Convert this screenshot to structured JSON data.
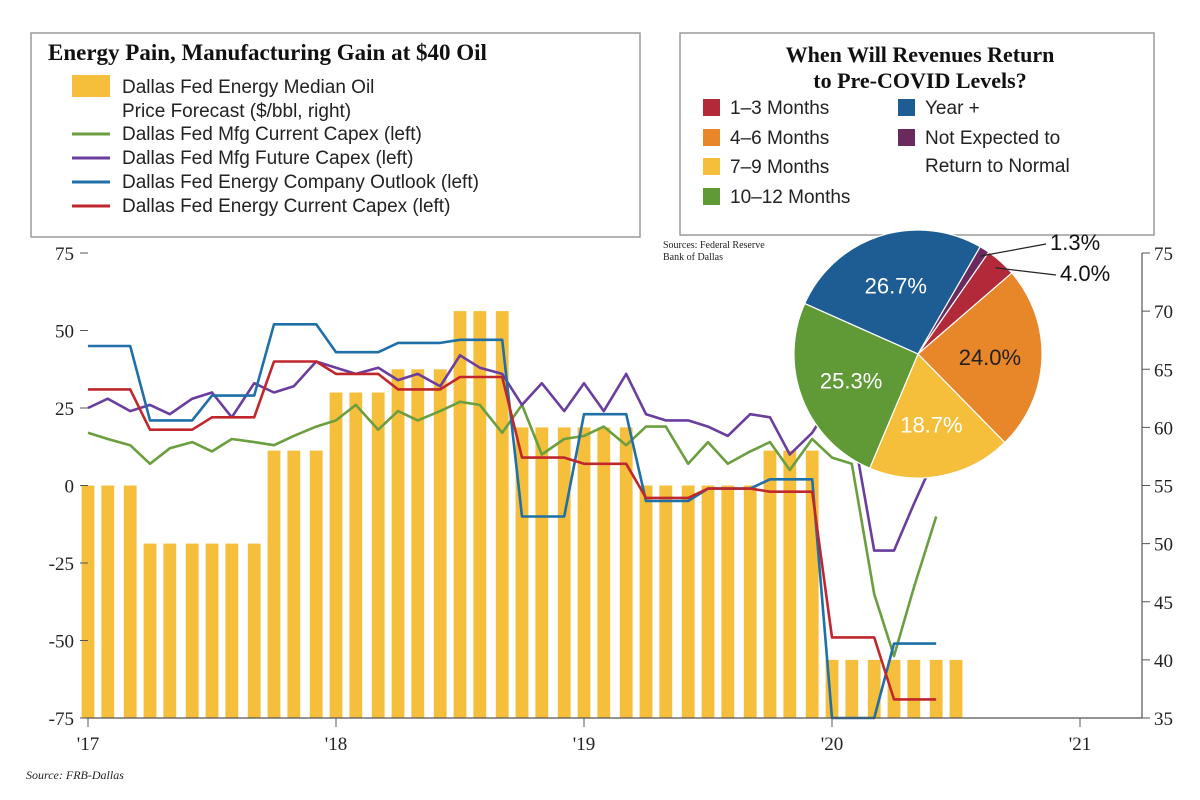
{
  "chart_data": [
    {
      "type": "bar+line",
      "title": "Energy Pain, Manufacturing Gain at $40 Oil",
      "source": "Source:  FRB-Dallas",
      "x_tick_labels": [
        "'17",
        "'18",
        "'19",
        "'20",
        "'21"
      ],
      "x_range": [
        2017.0,
        2021.25
      ],
      "left_axis": {
        "ylim": [
          -75,
          75
        ],
        "ticks": [
          "75",
          "50",
          "25",
          "0",
          "-25",
          "-50",
          "-75"
        ]
      },
      "right_axis": {
        "ylim": [
          35,
          75
        ],
        "ticks": [
          "75",
          "70",
          "65",
          "60",
          "55",
          "50",
          "45",
          "40",
          "35"
        ]
      },
      "bars": {
        "name": "Dallas Fed Energy Median Oil Price Forecast ($/bbl, right)",
        "axis": "right",
        "color": "#f5bf3c",
        "points": [
          [
            2017.0,
            55
          ],
          [
            2017.08,
            55
          ],
          [
            2017.17,
            55
          ],
          [
            2017.25,
            50
          ],
          [
            2017.33,
            50
          ],
          [
            2017.42,
            50
          ],
          [
            2017.5,
            50
          ],
          [
            2017.58,
            50
          ],
          [
            2017.67,
            50
          ],
          [
            2017.75,
            58
          ],
          [
            2017.83,
            58
          ],
          [
            2017.92,
            58
          ],
          [
            2018.0,
            63
          ],
          [
            2018.08,
            63
          ],
          [
            2018.17,
            63
          ],
          [
            2018.25,
            65
          ],
          [
            2018.33,
            65
          ],
          [
            2018.42,
            65
          ],
          [
            2018.5,
            70
          ],
          [
            2018.58,
            70
          ],
          [
            2018.67,
            70
          ],
          [
            2018.75,
            60
          ],
          [
            2018.83,
            60
          ],
          [
            2018.92,
            60
          ],
          [
            2019.0,
            60
          ],
          [
            2019.08,
            60
          ],
          [
            2019.17,
            60
          ],
          [
            2019.25,
            55
          ],
          [
            2019.33,
            55
          ],
          [
            2019.42,
            55
          ],
          [
            2019.5,
            55
          ],
          [
            2019.58,
            55
          ],
          [
            2019.67,
            55
          ],
          [
            2019.75,
            58
          ],
          [
            2019.83,
            58
          ],
          [
            2019.92,
            58
          ],
          [
            2020.0,
            40
          ],
          [
            2020.08,
            40
          ],
          [
            2020.17,
            40
          ],
          [
            2020.25,
            40
          ],
          [
            2020.33,
            40
          ],
          [
            2020.42,
            40
          ],
          [
            2020.5,
            40
          ]
        ]
      },
      "series": [
        {
          "name": "Dallas Fed Mfg Current Capex (left)",
          "axis": "left",
          "color": "#6a9e3f",
          "points": [
            [
              2017.0,
              17
            ],
            [
              2017.08,
              15
            ],
            [
              2017.17,
              13
            ],
            [
              2017.25,
              7
            ],
            [
              2017.33,
              12
            ],
            [
              2017.42,
              14
            ],
            [
              2017.5,
              11
            ],
            [
              2017.58,
              15
            ],
            [
              2017.67,
              14
            ],
            [
              2017.75,
              13
            ],
            [
              2017.83,
              16
            ],
            [
              2017.92,
              19
            ],
            [
              2018.0,
              21
            ],
            [
              2018.08,
              26
            ],
            [
              2018.17,
              18
            ],
            [
              2018.25,
              24
            ],
            [
              2018.33,
              21
            ],
            [
              2018.42,
              24
            ],
            [
              2018.5,
              27
            ],
            [
              2018.58,
              26
            ],
            [
              2018.67,
              17
            ],
            [
              2018.75,
              26
            ],
            [
              2018.83,
              10
            ],
            [
              2018.92,
              15
            ],
            [
              2019.0,
              16
            ],
            [
              2019.08,
              19
            ],
            [
              2019.17,
              13
            ],
            [
              2019.25,
              19
            ],
            [
              2019.33,
              19
            ],
            [
              2019.42,
              7
            ],
            [
              2019.5,
              14
            ],
            [
              2019.58,
              7
            ],
            [
              2019.67,
              11
            ],
            [
              2019.75,
              14
            ],
            [
              2019.83,
              5
            ],
            [
              2019.92,
              15
            ],
            [
              2020.0,
              9
            ],
            [
              2020.08,
              7
            ],
            [
              2020.17,
              -35
            ],
            [
              2020.25,
              -55
            ],
            [
              2020.33,
              -33
            ],
            [
              2020.42,
              -10
            ]
          ]
        },
        {
          "name": "Dallas Fed Mfg Future Capex (left)",
          "axis": "left",
          "color": "#6a3d9e",
          "points": [
            [
              2017.0,
              25
            ],
            [
              2017.08,
              28
            ],
            [
              2017.17,
              24
            ],
            [
              2017.25,
              26
            ],
            [
              2017.33,
              23
            ],
            [
              2017.42,
              28
            ],
            [
              2017.5,
              30
            ],
            [
              2017.58,
              22
            ],
            [
              2017.67,
              33
            ],
            [
              2017.75,
              30
            ],
            [
              2017.83,
              32
            ],
            [
              2017.92,
              40
            ],
            [
              2018.0,
              38
            ],
            [
              2018.08,
              36
            ],
            [
              2018.17,
              38
            ],
            [
              2018.25,
              34
            ],
            [
              2018.33,
              36
            ],
            [
              2018.42,
              32
            ],
            [
              2018.5,
              42
            ],
            [
              2018.58,
              38
            ],
            [
              2018.67,
              36
            ],
            [
              2018.75,
              26
            ],
            [
              2018.83,
              33
            ],
            [
              2018.92,
              24
            ],
            [
              2019.0,
              33
            ],
            [
              2019.08,
              24
            ],
            [
              2019.17,
              36
            ],
            [
              2019.25,
              23
            ],
            [
              2019.33,
              21
            ],
            [
              2019.42,
              21
            ],
            [
              2019.5,
              19
            ],
            [
              2019.58,
              16
            ],
            [
              2019.67,
              23
            ],
            [
              2019.75,
              22
            ],
            [
              2019.83,
              10
            ],
            [
              2019.92,
              17
            ],
            [
              2020.0,
              27
            ],
            [
              2020.08,
              20
            ],
            [
              2020.17,
              -21
            ],
            [
              2020.25,
              -21
            ],
            [
              2020.33,
              -6
            ],
            [
              2020.42,
              10
            ]
          ]
        },
        {
          "name": "Dallas Fed Energy Company Outlook (left)",
          "axis": "left",
          "color": "#1f6fa8",
          "points": [
            [
              2017.0,
              45
            ],
            [
              2017.17,
              45
            ],
            [
              2017.25,
              21
            ],
            [
              2017.42,
              21
            ],
            [
              2017.5,
              29
            ],
            [
              2017.67,
              29
            ],
            [
              2017.75,
              52
            ],
            [
              2017.92,
              52
            ],
            [
              2018.0,
              43
            ],
            [
              2018.17,
              43
            ],
            [
              2018.25,
              46
            ],
            [
              2018.42,
              46
            ],
            [
              2018.5,
              47
            ],
            [
              2018.67,
              47
            ],
            [
              2018.75,
              -10
            ],
            [
              2018.92,
              -10
            ],
            [
              2019.0,
              23
            ],
            [
              2019.17,
              23
            ],
            [
              2019.25,
              -5
            ],
            [
              2019.42,
              -5
            ],
            [
              2019.5,
              -1
            ],
            [
              2019.67,
              -1
            ],
            [
              2019.75,
              2
            ],
            [
              2019.92,
              2
            ],
            [
              2020.0,
              -75
            ],
            [
              2020.17,
              -75
            ],
            [
              2020.25,
              -51
            ],
            [
              2020.42,
              -51
            ]
          ]
        },
        {
          "name": "Dallas Fed Energy Current Capex (left)",
          "axis": "left",
          "color": "#c0272d",
          "points": [
            [
              2017.0,
              31
            ],
            [
              2017.17,
              31
            ],
            [
              2017.25,
              18
            ],
            [
              2017.42,
              18
            ],
            [
              2017.5,
              22
            ],
            [
              2017.67,
              22
            ],
            [
              2017.75,
              40
            ],
            [
              2017.92,
              40
            ],
            [
              2018.0,
              36
            ],
            [
              2018.17,
              36
            ],
            [
              2018.25,
              31
            ],
            [
              2018.42,
              31
            ],
            [
              2018.5,
              35
            ],
            [
              2018.67,
              35
            ],
            [
              2018.75,
              9
            ],
            [
              2018.92,
              9
            ],
            [
              2019.0,
              7
            ],
            [
              2019.17,
              7
            ],
            [
              2019.25,
              -4
            ],
            [
              2019.42,
              -4
            ],
            [
              2019.5,
              -1
            ],
            [
              2019.67,
              -1
            ],
            [
              2019.75,
              -2
            ],
            [
              2019.92,
              -2
            ],
            [
              2020.0,
              -49
            ],
            [
              2020.17,
              -49
            ],
            [
              2020.25,
              -69
            ],
            [
              2020.42,
              -69
            ]
          ]
        }
      ],
      "legend_placement": "top-left"
    },
    {
      "type": "pie",
      "title_lines": [
        "When Will Revenues Return",
        "to Pre-COVID Levels?"
      ],
      "source_lines": [
        "Sources: Federal Reserve",
        "Bank of Dallas"
      ],
      "legend_placement": "top",
      "slices": [
        {
          "label": "1–3 Months",
          "value": 4.0,
          "display": "4.0%",
          "color": "#b22a3a"
        },
        {
          "label": "4–6 Months",
          "value": 24.0,
          "display": "24.0%",
          "color": "#e8862a"
        },
        {
          "label": "7–9 Months",
          "value": 18.7,
          "display": "18.7%",
          "color": "#f5bf3c"
        },
        {
          "label": "10–12 Months",
          "value": 25.3,
          "display": "25.3%",
          "color": "#5f9a37"
        },
        {
          "label": "Year +",
          "value": 26.7,
          "display": "26.7%",
          "color": "#1d5d94"
        },
        {
          "label": "Not Expected to Return to Normal",
          "label_lines": [
            "Not Expected to",
            "Return to Normal"
          ],
          "value": 1.3,
          "display": "1.3%",
          "color": "#6b2a5e"
        }
      ]
    }
  ]
}
